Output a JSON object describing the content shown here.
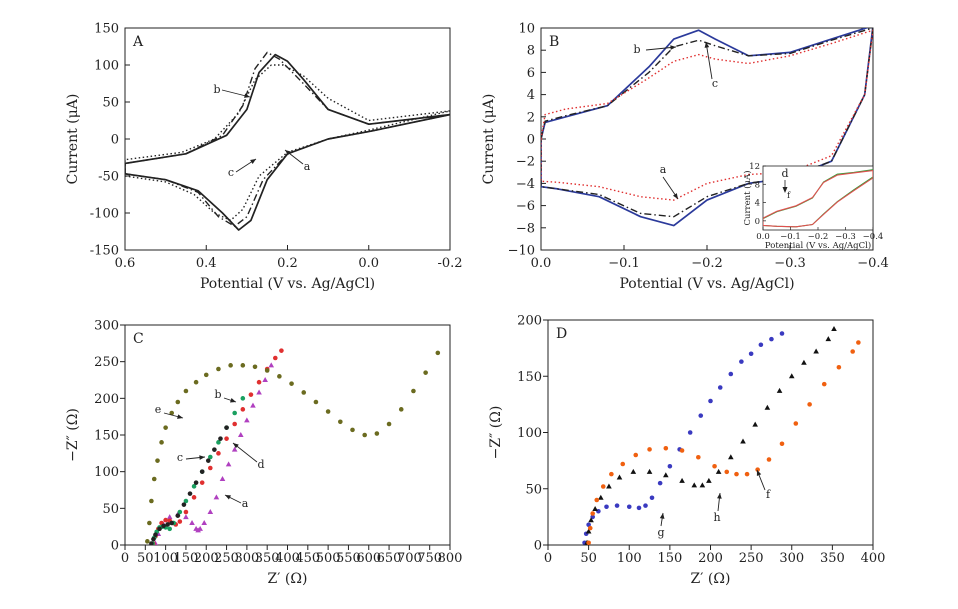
{
  "chart_data": [
    {
      "panel": "A",
      "type": "line",
      "xlabel": "Potential (V vs. Ag/AgCl)",
      "ylabel": "Current (μA)",
      "xlim": [
        0.6,
        -0.2
      ],
      "ylim": [
        -150,
        150
      ],
      "xticks": [
        0.6,
        0.4,
        0.2,
        0.0,
        -0.2
      ],
      "xtick_labels": [
        "0.6",
        "0.4",
        "0.2",
        "0.0",
        "-0.2"
      ],
      "yticks": [
        -150,
        -100,
        -50,
        0,
        50,
        100,
        150
      ],
      "ytick_labels": [
        "-150",
        "-100",
        "-50",
        "0",
        "50",
        "100",
        "150"
      ],
      "series": [
        {
          "name": "a",
          "style": "solid",
          "x": [
            0.6,
            0.5,
            0.42,
            0.36,
            0.32,
            0.29,
            0.25,
            0.2,
            0.1,
            0.0,
            -0.2,
            0.0,
            0.1,
            0.16,
            0.2,
            0.23,
            0.27,
            0.3,
            0.35,
            0.45,
            0.6
          ],
          "y": [
            -47,
            -55,
            -70,
            -100,
            -123,
            -110,
            -55,
            -20,
            0,
            10,
            33,
            20,
            40,
            80,
            105,
            114,
            90,
            40,
            5,
            -20,
            -33
          ]
        },
        {
          "name": "b",
          "style": "dashdot",
          "x": [
            0.6,
            0.5,
            0.42,
            0.37,
            0.33,
            0.3,
            0.26,
            0.2,
            0.1,
            0.0,
            -0.2,
            0.0,
            0.1,
            0.17,
            0.22,
            0.25,
            0.28,
            0.31,
            0.36,
            0.45,
            0.6
          ],
          "y": [
            -47,
            -55,
            -72,
            -105,
            -118,
            -105,
            -55,
            -20,
            0,
            10,
            33,
            20,
            40,
            80,
            108,
            117,
            95,
            45,
            5,
            -20,
            -33
          ]
        },
        {
          "name": "c",
          "style": "dotted",
          "x": [
            0.6,
            0.5,
            0.43,
            0.38,
            0.34,
            0.31,
            0.27,
            0.2,
            0.1,
            0.0,
            -0.2,
            0.0,
            0.1,
            0.16,
            0.21,
            0.24,
            0.28,
            0.32,
            0.38,
            0.46,
            0.6
          ],
          "y": [
            -50,
            -58,
            -75,
            -100,
            -110,
            -95,
            -50,
            -18,
            0,
            12,
            38,
            25,
            55,
            85,
            100,
            100,
            80,
            35,
            0,
            -18,
            -28
          ]
        }
      ],
      "annotations": [
        "a",
        "b",
        "c"
      ]
    },
    {
      "panel": "B",
      "type": "line",
      "xlabel": "Potential (V vs. Ag/AgCl)",
      "ylabel": "Current (μA)",
      "xlim": [
        0.0,
        -0.4
      ],
      "ylim": [
        -10,
        10
      ],
      "xticks": [
        0.0,
        -0.1,
        -0.2,
        -0.3,
        -0.4
      ],
      "xtick_labels": [
        "0.0",
        "−0.1",
        "−0.2",
        "−0.3",
        "−0.4"
      ],
      "yticks": [
        -10,
        -8,
        -6,
        -4,
        -2,
        0,
        2,
        4,
        6,
        8,
        10
      ],
      "ytick_labels": [
        "−10",
        "−8",
        "−6",
        "−4",
        "−2",
        "0",
        "2",
        "4",
        "6",
        "8",
        "10"
      ],
      "series": [
        {
          "name": "b",
          "color": "#2b3a9b",
          "style": "solid",
          "x": [
            0.0,
            -0.005,
            -0.03,
            -0.08,
            -0.13,
            -0.16,
            -0.19,
            -0.21,
            -0.25,
            -0.3,
            -0.35,
            -0.4,
            -0.39,
            -0.35,
            -0.3,
            -0.25,
            -0.2,
            -0.16,
            -0.12,
            -0.07,
            -0.02,
            0.0
          ],
          "y": [
            0.0,
            1.5,
            2.0,
            3.0,
            6.5,
            9.0,
            9.8,
            9.0,
            7.5,
            7.8,
            9.0,
            10.2,
            4.0,
            -2.0,
            -3.5,
            -4.0,
            -5.5,
            -7.8,
            -7.0,
            -5.2,
            -4.5,
            -4.3
          ]
        },
        {
          "name": "c",
          "color": "#222222",
          "style": "dashdot",
          "x": [
            0.0,
            -0.005,
            -0.03,
            -0.08,
            -0.13,
            -0.16,
            -0.19,
            -0.21,
            -0.25,
            -0.3,
            -0.35,
            -0.4,
            -0.39,
            -0.35,
            -0.3,
            -0.25,
            -0.2,
            -0.16,
            -0.12,
            -0.07,
            -0.02,
            0.0
          ],
          "y": [
            0.0,
            1.6,
            2.1,
            3.0,
            6.0,
            8.3,
            8.9,
            8.4,
            7.5,
            7.7,
            8.9,
            10.0,
            4.0,
            -2.0,
            -3.4,
            -4.0,
            -5.2,
            -7.0,
            -6.7,
            -5.0,
            -4.5,
            -4.3
          ]
        },
        {
          "name": "a",
          "color": "#e03030",
          "style": "dotted",
          "x": [
            0.0,
            -0.005,
            -0.03,
            -0.08,
            -0.13,
            -0.16,
            -0.19,
            -0.21,
            -0.25,
            -0.3,
            -0.35,
            -0.4,
            -0.39,
            -0.35,
            -0.3,
            -0.25,
            -0.2,
            -0.16,
            -0.12,
            -0.07,
            -0.02,
            0.0
          ],
          "y": [
            0.0,
            2.2,
            2.7,
            3.2,
            5.5,
            7.0,
            7.6,
            7.2,
            6.8,
            7.5,
            8.6,
            9.8,
            4.0,
            -1.5,
            -3.0,
            -3.2,
            -4.0,
            -5.5,
            -5.2,
            -4.3,
            -3.9,
            -3.8
          ]
        }
      ],
      "annotations": [
        "a",
        "b",
        "c"
      ],
      "inset": {
        "xlabel": "Potential (V vs. Ag/AgCl)",
        "ylabel": "Current (μA)",
        "xlim": [
          0.0,
          -0.4
        ],
        "ylim": [
          -2,
          12
        ],
        "xticks": [
          0.0,
          -0.1,
          -0.2,
          -0.3,
          -0.4
        ],
        "xtick_labels": [
          "0.0",
          "−0.1",
          "−0.2",
          "−0.3",
          "−0.4"
        ],
        "yticks": [
          0,
          4,
          8,
          12
        ],
        "ytick_labels": [
          "0",
          "4",
          "8",
          "12"
        ],
        "series": [
          {
            "name": "d",
            "color": "#3a9a3a",
            "x": [
              0.0,
              -0.05,
              -0.12,
              -0.18,
              -0.22,
              -0.27,
              -0.33,
              -0.4,
              -0.4,
              -0.33,
              -0.27,
              -0.22,
              -0.18,
              -0.12,
              -0.05,
              0.0
            ],
            "y": [
              0.5,
              2.0,
              3.2,
              5.0,
              8.5,
              10.2,
              10.6,
              11.2,
              9.6,
              6.8,
              4.2,
              1.5,
              -0.8,
              -1.3,
              -1.2,
              -1.0
            ]
          },
          {
            "name": "f",
            "color": "#e05050",
            "x": [
              0.0,
              -0.05,
              -0.12,
              -0.18,
              -0.22,
              -0.27,
              -0.33,
              -0.4,
              -0.4,
              -0.33,
              -0.27,
              -0.22,
              -0.18,
              -0.12,
              -0.05,
              0.0
            ],
            "y": [
              0.6,
              2.1,
              3.3,
              5.1,
              8.4,
              10.0,
              10.5,
              11.0,
              9.4,
              6.6,
              4.1,
              1.4,
              -0.8,
              -1.3,
              -1.2,
              -1.0
            ]
          }
        ],
        "annotations": [
          "d",
          "f"
        ]
      }
    },
    {
      "panel": "C",
      "type": "scatter",
      "xlabel": "Z′ (Ω)",
      "ylabel": "−Z″ (Ω)",
      "xlim": [
        0,
        800
      ],
      "ylim": [
        0,
        300
      ],
      "xticks": [
        0,
        50,
        100,
        150,
        200,
        250,
        300,
        350,
        400,
        450,
        500,
        550,
        600,
        650,
        700,
        750,
        800
      ],
      "xtick_labels": [
        "0",
        "50",
        "100",
        "150",
        "200",
        "250",
        "300",
        "350",
        "400",
        "450",
        "500",
        "550",
        "600",
        "650",
        "700",
        "750",
        "800"
      ],
      "yticks": [
        0,
        50,
        100,
        150,
        200,
        250,
        300
      ],
      "ytick_labels": [
        "0",
        "50",
        "100",
        "150",
        "200",
        "250",
        "300"
      ],
      "series": [
        {
          "name": "a",
          "color": "#b040c0",
          "marker": "triangle",
          "x": [
            75,
            82,
            95,
            110,
            130,
            150,
            165,
            175,
            180,
            185,
            195,
            210,
            225,
            240,
            255,
            270,
            285,
            300,
            315,
            330,
            345,
            360
          ],
          "y": [
            2,
            15,
            28,
            38,
            42,
            38,
            30,
            22,
            20,
            22,
            30,
            45,
            65,
            90,
            110,
            130,
            150,
            170,
            190,
            208,
            225,
            245
          ]
        },
        {
          "name": "b",
          "color": "#e03030",
          "marker": "dot",
          "x": [
            70,
            75,
            82,
            90,
            100,
            110,
            118,
            125,
            135,
            150,
            170,
            190,
            210,
            230,
            250,
            270,
            290,
            310,
            330,
            350,
            370,
            385
          ],
          "y": [
            2,
            12,
            22,
            30,
            34,
            33,
            30,
            28,
            32,
            45,
            65,
            85,
            105,
            125,
            145,
            165,
            185,
            205,
            222,
            240,
            255,
            265
          ]
        },
        {
          "name": "c",
          "color": "#1aa060",
          "marker": "dot",
          "x": [
            68,
            72,
            78,
            85,
            92,
            100,
            110,
            120,
            135,
            150,
            170,
            190,
            210,
            230,
            250,
            270,
            290
          ],
          "y": [
            2,
            10,
            18,
            24,
            25,
            24,
            22,
            30,
            45,
            60,
            80,
            100,
            120,
            140,
            160,
            180,
            200
          ]
        },
        {
          "name": "d",
          "color": "#222222",
          "marker": "dot",
          "x": [
            65,
            70,
            75,
            85,
            95,
            105,
            115,
            130,
            145,
            160,
            175,
            190,
            205,
            220,
            235,
            250
          ],
          "y": [
            2,
            8,
            14,
            22,
            26,
            28,
            30,
            40,
            55,
            70,
            85,
            100,
            115,
            130,
            145,
            160
          ]
        },
        {
          "name": "e",
          "color": "#6b6b20",
          "marker": "dot",
          "x": [
            55,
            60,
            65,
            72,
            80,
            90,
            100,
            115,
            130,
            150,
            175,
            200,
            230,
            260,
            290,
            320,
            350,
            380,
            410,
            440,
            470,
            500,
            530,
            560,
            590,
            620,
            650,
            680,
            710,
            740,
            770
          ],
          "y": [
            5,
            30,
            60,
            90,
            115,
            140,
            160,
            180,
            195,
            210,
            222,
            232,
            240,
            245,
            245,
            243,
            238,
            230,
            220,
            208,
            195,
            182,
            168,
            157,
            150,
            152,
            165,
            185,
            210,
            235,
            262
          ]
        }
      ],
      "annotations": [
        "a",
        "b",
        "c",
        "d",
        "e"
      ]
    },
    {
      "panel": "D",
      "type": "scatter",
      "xlabel": "Z′ (Ω)",
      "ylabel": "−Z″ (Ω)",
      "xlim": [
        0,
        400
      ],
      "ylim": [
        0,
        200
      ],
      "xticks": [
        0,
        50,
        100,
        150,
        200,
        250,
        300,
        350,
        400
      ],
      "xtick_labels": [
        "0",
        "50",
        "100",
        "150",
        "200",
        "250",
        "300",
        "350",
        "400"
      ],
      "yticks": [
        0,
        50,
        100,
        150,
        200
      ],
      "ytick_labels": [
        "0",
        "50",
        "100",
        "150",
        "200"
      ],
      "series": [
        {
          "name": "g",
          "color": "#3a3ac0",
          "marker": "dot",
          "x": [
            45,
            47,
            50,
            55,
            62,
            72,
            85,
            100,
            112,
            120,
            128,
            138,
            150,
            162,
            175,
            188,
            200,
            212,
            225,
            238,
            250,
            262,
            275,
            288
          ],
          "y": [
            2,
            10,
            18,
            25,
            30,
            34,
            35,
            34,
            33,
            35,
            42,
            55,
            70,
            85,
            100,
            115,
            128,
            140,
            152,
            163,
            170,
            178,
            183,
            188
          ]
        },
        {
          "name": "h",
          "color": "#111111",
          "marker": "triangle",
          "x": [
            48,
            50,
            53,
            58,
            65,
            75,
            88,
            105,
            125,
            145,
            165,
            180,
            190,
            198,
            210,
            225,
            240,
            255,
            270,
            285,
            300,
            315,
            330,
            345,
            352
          ],
          "y": [
            2,
            12,
            22,
            32,
            42,
            52,
            60,
            65,
            65,
            62,
            57,
            53,
            53,
            57,
            65,
            78,
            92,
            107,
            122,
            137,
            150,
            162,
            172,
            183,
            192
          ]
        },
        {
          "name": "f",
          "color": "#f06010",
          "marker": "dot",
          "x": [
            50,
            52,
            55,
            60,
            68,
            78,
            92,
            108,
            125,
            145,
            165,
            185,
            205,
            220,
            232,
            245,
            258,
            272,
            288,
            305,
            322,
            340,
            358,
            375,
            382
          ],
          "y": [
            2,
            15,
            28,
            40,
            52,
            63,
            72,
            80,
            85,
            86,
            84,
            78,
            70,
            65,
            63,
            63,
            67,
            76,
            90,
            108,
            125,
            143,
            158,
            172,
            180
          ]
        }
      ],
      "annotations": [
        "f",
        "g",
        "h"
      ]
    }
  ]
}
